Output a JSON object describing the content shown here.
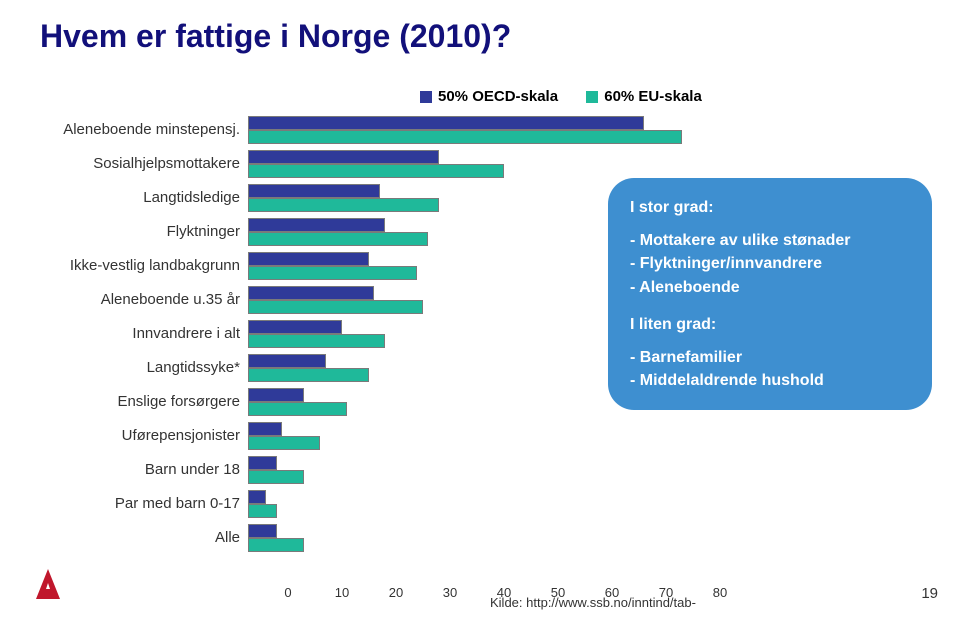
{
  "title": "Hvem er fattige i Norge (2010)?",
  "title_color": "#12107a",
  "page_number": "19",
  "source": "Kilde: http://www.ssb.no/inntind/tab-",
  "legend": {
    "series": [
      {
        "label": "50% OECD-skala",
        "color": "#2f3a99"
      },
      {
        "label": "60% EU-skala",
        "color": "#1fb99a"
      }
    ]
  },
  "chart": {
    "type": "bar",
    "x_min": 0,
    "x_max": 80,
    "x_tick_step": 10,
    "bar_border": "#7a7a7a",
    "label_fontsize": 15,
    "tick_fontsize": 13,
    "categories": [
      {
        "name": "Aleneboende minstepensj.",
        "oecd": 73,
        "eu": 80
      },
      {
        "name": "Sosialhjelpsmottakere",
        "oecd": 35,
        "eu": 47
      },
      {
        "name": "Langtidsledige",
        "oecd": 24,
        "eu": 35
      },
      {
        "name": "Flyktninger",
        "oecd": 25,
        "eu": 33
      },
      {
        "name": "Ikke-vestlig landbakgrunn",
        "oecd": 22,
        "eu": 31
      },
      {
        "name": "Aleneboende u.35 år",
        "oecd": 23,
        "eu": 32
      },
      {
        "name": "Innvandrere i alt",
        "oecd": 17,
        "eu": 25
      },
      {
        "name": "Langtidssyke*",
        "oecd": 14,
        "eu": 22
      },
      {
        "name": "Enslige forsørgere",
        "oecd": 10,
        "eu": 18
      },
      {
        "name": "Uførepensjonister",
        "oecd": 6,
        "eu": 13
      },
      {
        "name": "Barn under 18",
        "oecd": 5,
        "eu": 10
      },
      {
        "name": "Par med barn 0-17",
        "oecd": 3,
        "eu": 5
      },
      {
        "name": "Alle",
        "oecd": 5,
        "eu": 10
      }
    ]
  },
  "callout": {
    "bg": "#3e8fd0",
    "text_color": "#ffffff",
    "group1_title": "I stor grad:",
    "group1_items": [
      "- Mottakere av ulike stønader",
      "- Flyktninger/innvandrere",
      "- Aleneboende"
    ],
    "group2_title": "I liten grad:",
    "group2_items": [
      "- Barnefamilier",
      "- Middelaldrende hushold"
    ]
  },
  "logo": {
    "fill": "#c0172c",
    "accent": "#ffffff"
  }
}
